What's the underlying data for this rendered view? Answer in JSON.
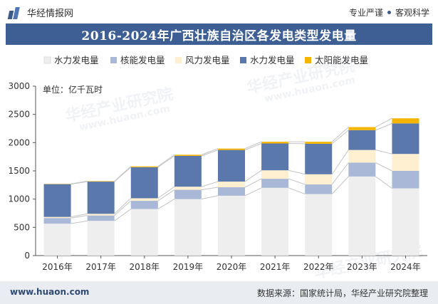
{
  "header": {
    "brand": "华经情报网",
    "slogan_left": "专业严谨",
    "slogan_right": "客观科学"
  },
  "title": "2016-2024年广西壮族自治区各发电类型发电量",
  "watermarks": [
    "华经产业研究院",
    "www.huaon.com"
  ],
  "footer": {
    "website": "www.huaon.com",
    "source": "数据来源：国家统计局，华经产业研究院整理"
  },
  "colors": {
    "hydro_light": "#eeeeee",
    "nuclear": "#a8b8d6",
    "wind": "#fdefcf",
    "hydro_dark": "#5a78ab",
    "solar": "#f4b400",
    "title_bg": "#3d5f93"
  },
  "chart_data": {
    "type": "bar",
    "stacked": true,
    "categories": [
      "2016年",
      "2017年",
      "2018年",
      "2019年",
      "2020年",
      "2021年",
      "2022年",
      "2023年",
      "2024年"
    ],
    "unit": "单位：亿千瓦时",
    "ylim": [
      0,
      3000
    ],
    "yticks": [
      0,
      500,
      1000,
      1500,
      2000,
      2500,
      3000
    ],
    "grid": false,
    "legend_position": "top",
    "series": [
      {
        "name": "水力发电量",
        "color": "#eeeeee",
        "values": [
          565,
          615,
          825,
          1000,
          1060,
          1200,
          1090,
          1400,
          1190
        ]
      },
      {
        "name": "核能发电量",
        "color": "#a8b8d6",
        "values": [
          100,
          95,
          145,
          165,
          150,
          160,
          170,
          245,
          310
        ]
      },
      {
        "name": "风力发电量",
        "color": "#fdefcf",
        "values": [
          20,
          30,
          45,
          55,
          100,
          150,
          180,
          225,
          300
        ]
      },
      {
        "name": "水力发电量",
        "color": "#5a78ab",
        "values": [
          580,
          570,
          550,
          545,
          560,
          475,
          540,
          350,
          540
        ]
      },
      {
        "name": "太阳能发电量",
        "color": "#f4b400",
        "values": [
          5,
          8,
          15,
          20,
          25,
          30,
          35,
          55,
          90
        ]
      }
    ]
  }
}
